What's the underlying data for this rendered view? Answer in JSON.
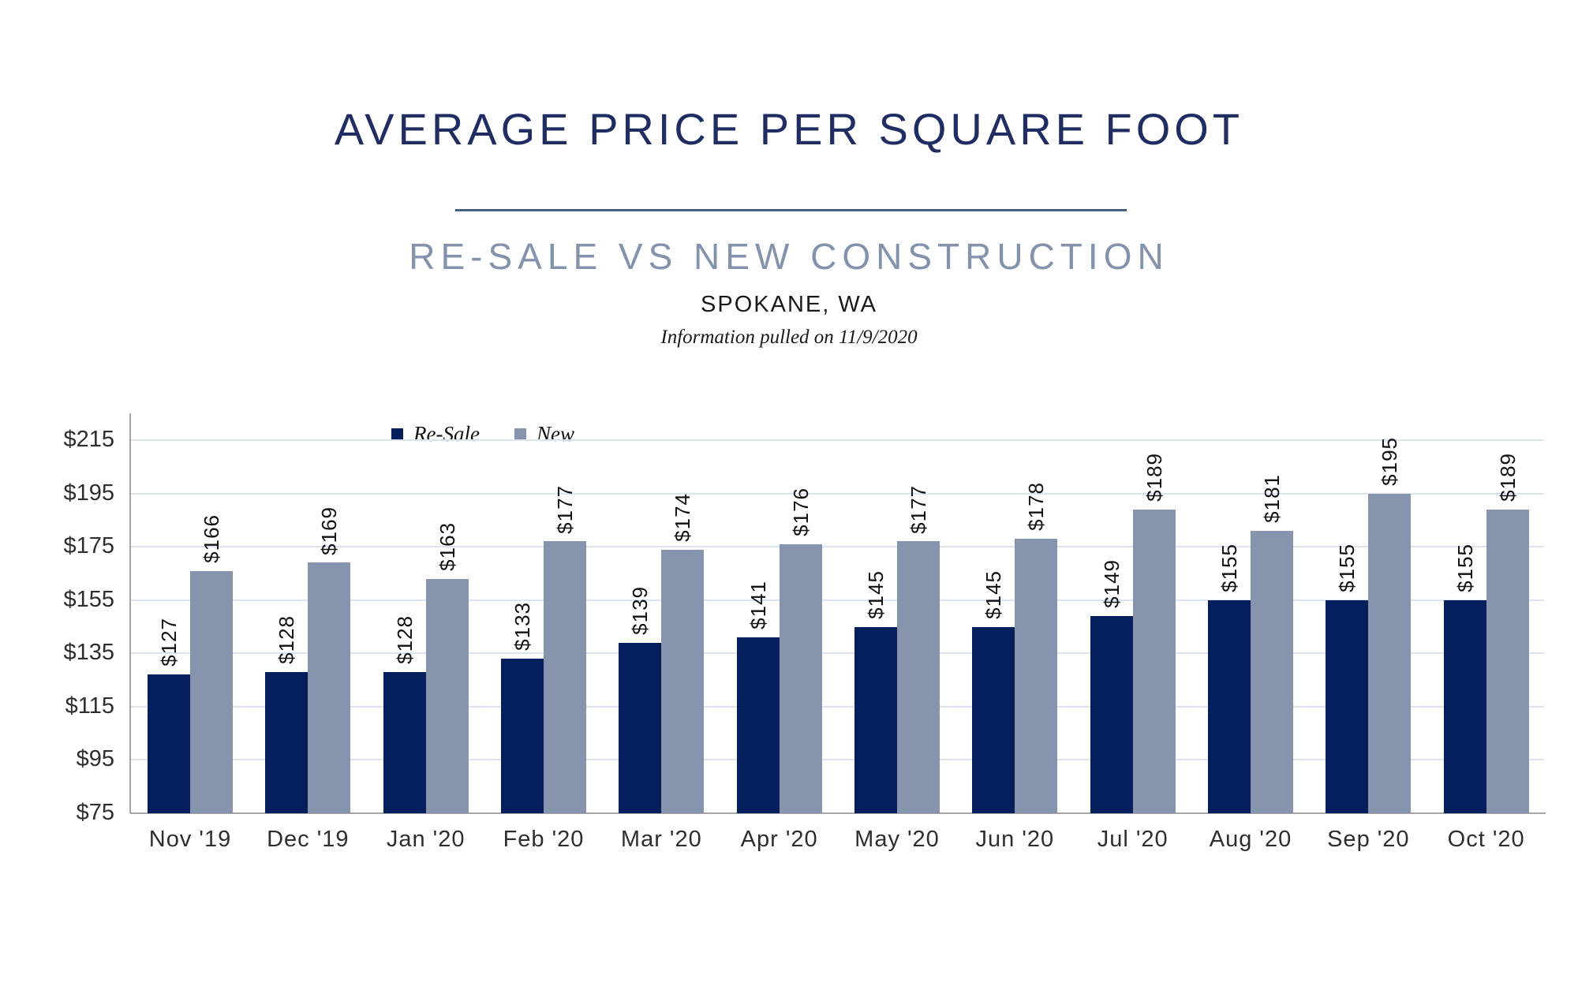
{
  "header": {
    "title": "AVERAGE PRICE PER SQUARE FOOT",
    "subtitle": "RE-SALE VS NEW CONSTRUCTION",
    "location": "SPOKANE, WA",
    "note": "Information pulled on 11/9/2020"
  },
  "colors": {
    "resale_bar": "#051f5e",
    "new_bar": "#8794ad",
    "title_text": "#1f2d63",
    "subtitle_text": "#8493ad",
    "divider": "#466083",
    "gridline": "#dde4ef",
    "axis": "#a6a6a6"
  },
  "chart_data": {
    "type": "bar",
    "title": "",
    "xlabel": "",
    "ylabel": "",
    "categories": [
      "Nov '19",
      "Dec '19",
      "Jan '20",
      "Feb '20",
      "Mar '20",
      "Apr '20",
      "May '20",
      "Jun '20",
      "Jul '20",
      "Aug '20",
      "Sep '20",
      "Oct '20"
    ],
    "series": [
      {
        "name": "Re-Sale",
        "color": "#051f5e",
        "values": [
          127,
          128,
          128,
          133,
          139,
          141,
          145,
          145,
          149,
          155,
          155,
          155
        ],
        "labels": [
          "$127",
          "$128",
          "$128",
          "$133",
          "$139",
          "$141",
          "$145",
          "$145",
          "$149",
          "$155",
          "$155",
          "$155"
        ]
      },
      {
        "name": "New",
        "color": "#8794ad",
        "values": [
          166,
          169,
          163,
          177,
          174,
          176,
          177,
          178,
          189,
          181,
          195,
          189
        ],
        "labels": [
          "$166",
          "$169",
          "$163",
          "$177",
          "$174",
          "$176",
          "$177",
          "$178",
          "$189",
          "$181",
          "$195",
          "$189"
        ]
      }
    ],
    "ylim": [
      75,
      215
    ],
    "ytick_step": 20,
    "ytick_labels": [
      "$75",
      "$95",
      "$115",
      "$135",
      "$155",
      "$175",
      "$195",
      "$215"
    ],
    "grid": true,
    "legend_position": "top"
  }
}
